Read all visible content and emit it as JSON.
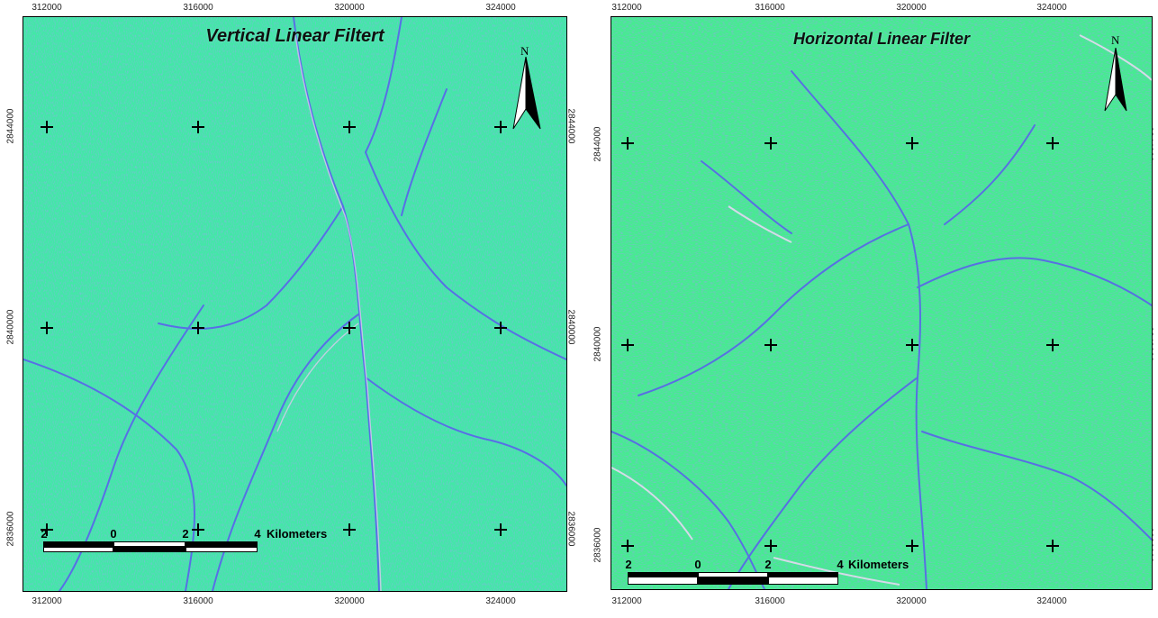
{
  "panels": [
    {
      "id": "left",
      "title": "Vertical Linear Filtert",
      "x_ticks": [
        "312000",
        "316000",
        "320000",
        "324000"
      ],
      "y_ticks": [
        "2844000",
        "2840000",
        "2836000"
      ],
      "north_label": "N",
      "scale": {
        "left": "2",
        "mid": "0",
        "right1": "2",
        "right2": "4",
        "units": "Kilometers"
      }
    },
    {
      "id": "right",
      "title": "Horizontal Linear Filter",
      "x_ticks": [
        "312000",
        "316000",
        "320000",
        "324000"
      ],
      "y_ticks": [
        "2844000",
        "2840000",
        "2836000"
      ],
      "north_label": "N",
      "scale": {
        "left": "2",
        "mid": "0",
        "right1": "2",
        "right2": "4",
        "units": "Kilometers"
      }
    }
  ],
  "colors": {
    "background_green": "#42e8a6",
    "channel_blue": "#5a5cf0",
    "highlight_pink": "#f0c8f8"
  }
}
